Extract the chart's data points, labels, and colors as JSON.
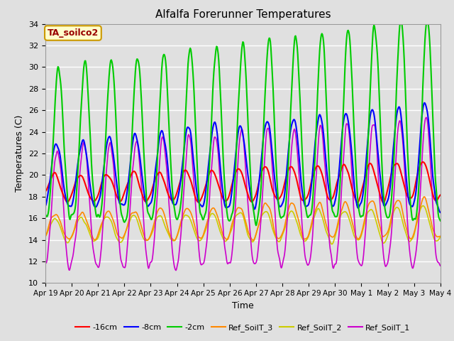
{
  "title": "Alfalfa Forerunner Temperatures",
  "xlabel": "Time",
  "ylabel": "Temperatures (C)",
  "ylim": [
    10,
    34
  ],
  "xlim": [
    0,
    360
  ],
  "fig_bg": "#e0e0e0",
  "plot_bg": "#e0e0e0",
  "grid_color": "#ffffff",
  "annotation_text": "TA_soilco2",
  "annotation_color": "#990000",
  "annotation_bg": "#ffffcc",
  "annotation_border": "#cc9900",
  "xtick_labels": [
    "Apr 19",
    "Apr 20",
    "Apr 21",
    "Apr 22",
    "Apr 23",
    "Apr 24",
    "Apr 25",
    "Apr 26",
    "Apr 27",
    "Apr 28",
    "Apr 29",
    "Apr 30",
    "May 1",
    "May 2",
    "May 3",
    "May 4"
  ],
  "xtick_positions": [
    0,
    24,
    48,
    72,
    96,
    120,
    144,
    168,
    192,
    216,
    240,
    264,
    288,
    312,
    336,
    360
  ],
  "ytick_positions": [
    10,
    12,
    14,
    16,
    18,
    20,
    22,
    24,
    26,
    28,
    30,
    32,
    34
  ],
  "series_colors": [
    "#ff0000",
    "#0000ff",
    "#00cc00",
    "#ff8800",
    "#cccc00",
    "#cc00cc"
  ],
  "series_names": [
    "-16cm",
    "-8cm",
    "-2cm",
    "Ref_SoilT_3",
    "Ref_SoilT_2",
    "Ref_SoilT_1"
  ],
  "n_points": 721
}
